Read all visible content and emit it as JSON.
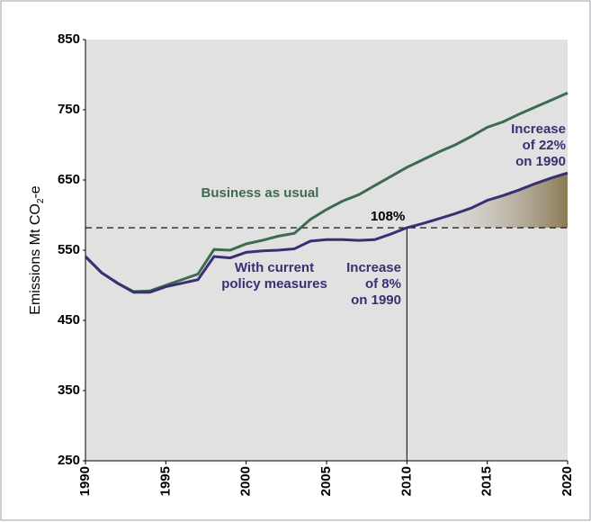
{
  "chart_data": {
    "type": "line",
    "x": [
      1990,
      1991,
      1992,
      1993,
      1994,
      1995,
      1996,
      1997,
      1998,
      1999,
      2000,
      2001,
      2002,
      2003,
      2004,
      2005,
      2006,
      2007,
      2008,
      2009,
      2010,
      2011,
      2012,
      2013,
      2014,
      2015,
      2016,
      2017,
      2018,
      2019,
      2020
    ],
    "series": [
      {
        "name": "Business as usual",
        "color": "#3d6b4f",
        "values": [
          541,
          518,
          503,
          491,
          492,
          500,
          508,
          516,
          551,
          550,
          559,
          564,
          570,
          574,
          594,
          608,
          620,
          629,
          642,
          655,
          668,
          679,
          690,
          700,
          712,
          725,
          733,
          744,
          754,
          764,
          774
        ]
      },
      {
        "name": "With current policy measures",
        "color": "#3b2f73",
        "values": [
          541,
          518,
          503,
          490,
          490,
          498,
          503,
          508,
          541,
          539,
          547,
          549,
          550,
          552,
          563,
          565,
          565,
          564,
          565,
          573,
          582,
          588,
          595,
          602,
          610,
          621,
          628,
          636,
          645,
          653,
          660
        ]
      }
    ],
    "ylabel": [
      "Emissions Mt CO",
      "2",
      "-e"
    ],
    "xlim": [
      1990,
      2020
    ],
    "xticks": [
      1990,
      1995,
      2000,
      2005,
      2010,
      2015,
      2020
    ],
    "ylim": [
      250,
      850
    ],
    "yticks": [
      250,
      350,
      450,
      550,
      650,
      750,
      850
    ],
    "reference_line": 582,
    "reference_label": "108%",
    "marker_x": 2010,
    "annotations": {
      "bau": [
        "Business as usual"
      ],
      "policy": [
        "With current",
        "policy measures"
      ],
      "increase_2010": [
        "Increase",
        "of 8%",
        "on 1990"
      ],
      "increase_2020": [
        "Increase",
        "of 22%",
        "on 1990"
      ]
    },
    "shade_color": "#8a7a55"
  }
}
